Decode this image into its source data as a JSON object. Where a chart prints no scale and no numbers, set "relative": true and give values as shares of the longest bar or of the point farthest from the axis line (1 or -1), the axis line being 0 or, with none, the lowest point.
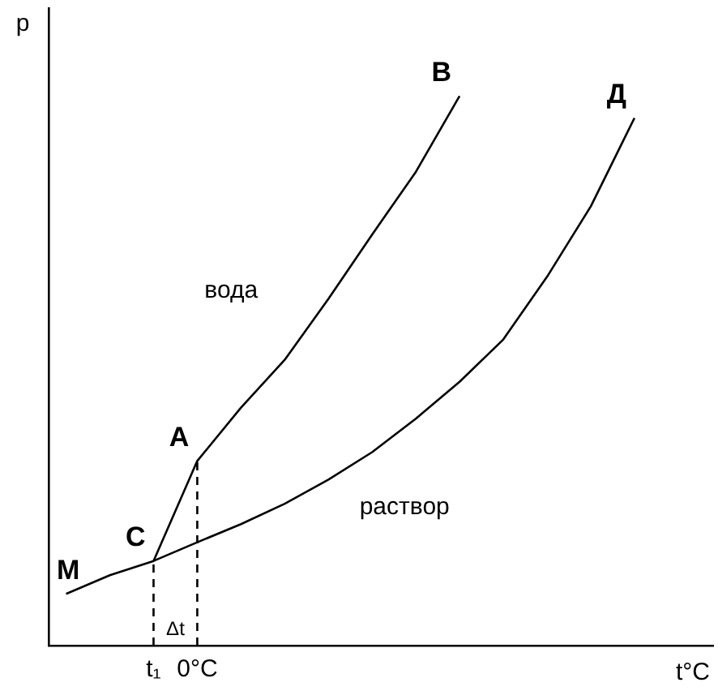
{
  "chart_data": {
    "type": "line",
    "relative": true,
    "xlabel": "t°C",
    "ylabel": "p",
    "categories": [
      null,
      null,
      "t₁",
      "0°C",
      null,
      null,
      null,
      null,
      null,
      null,
      null,
      null,
      null,
      null,
      null
    ],
    "tick_labels": "x",
    "grid": false,
    "legend": false,
    "marker": "none",
    "line_style": "solid",
    "series": [
      {
        "name": "раствор",
        "color": "#000000",
        "values": [
          0.094,
          0.128,
          0.154,
          0.188,
          0.221,
          0.258,
          0.302,
          0.352,
          0.413,
          0.48,
          0.557,
          0.671,
          0.799,
          0.96,
          null
        ]
      },
      {
        "name": "вода",
        "color": "#000000",
        "values": [
          null,
          null,
          0.154,
          0.336,
          0.433,
          0.52,
          0.631,
          0.748,
          0.862,
          1.0,
          null,
          null,
          null,
          null,
          null
        ]
      }
    ],
    "ref_lines": [
      {
        "axis": "x",
        "value": "t₁",
        "line_style": "dashed",
        "color": "#000000"
      },
      {
        "axis": "x",
        "value": "0°C",
        "line_style": "dashed",
        "color": "#000000"
      }
    ],
    "annotations": [
      "М",
      "С",
      "А",
      "В",
      "Д",
      "Δt"
    ]
  }
}
